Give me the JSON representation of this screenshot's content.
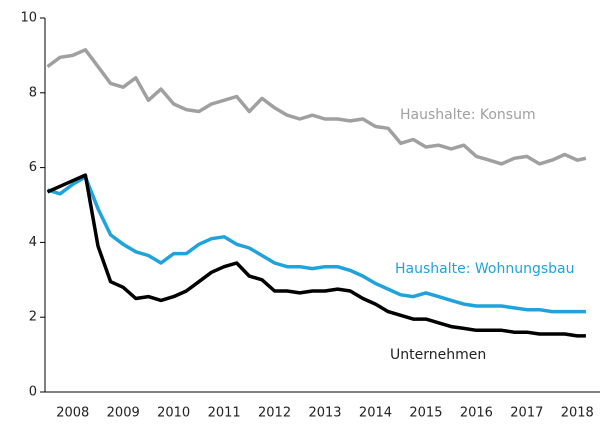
{
  "chart_data": {
    "type": "line",
    "x": [
      2008.0,
      2008.25,
      2008.5,
      2008.75,
      2009.0,
      2009.25,
      2009.5,
      2009.75,
      2010.0,
      2010.25,
      2010.5,
      2010.75,
      2011.0,
      2011.25,
      2011.5,
      2011.75,
      2012.0,
      2012.25,
      2012.5,
      2012.75,
      2013.0,
      2013.25,
      2013.5,
      2013.75,
      2014.0,
      2014.25,
      2014.5,
      2014.75,
      2015.0,
      2015.25,
      2015.5,
      2015.75,
      2016.0,
      2016.25,
      2016.5,
      2016.75,
      2017.0,
      2017.25,
      2017.5,
      2017.75,
      2018.0,
      2018.25,
      2018.5,
      2018.67
    ],
    "series": [
      {
        "name": "Haushalte: Konsum",
        "color": "#a0a0a0",
        "values": [
          8.7,
          8.95,
          9.0,
          9.15,
          8.7,
          8.25,
          8.15,
          8.4,
          7.8,
          8.1,
          7.7,
          7.55,
          7.5,
          7.7,
          7.8,
          7.9,
          7.5,
          7.85,
          7.6,
          7.4,
          7.3,
          7.4,
          7.3,
          7.3,
          7.25,
          7.3,
          7.1,
          7.05,
          6.65,
          6.75,
          6.55,
          6.6,
          6.5,
          6.6,
          6.3,
          6.2,
          6.1,
          6.25,
          6.3,
          6.1,
          6.2,
          6.35,
          6.2,
          6.25
        ]
      },
      {
        "name": "Haushalte: Wohnungsbau",
        "color": "#1fa3dc",
        "values": [
          5.4,
          5.3,
          5.55,
          5.75,
          4.9,
          4.2,
          3.95,
          3.75,
          3.65,
          3.45,
          3.7,
          3.7,
          3.95,
          4.1,
          4.15,
          3.95,
          3.85,
          3.65,
          3.45,
          3.35,
          3.35,
          3.3,
          3.35,
          3.35,
          3.25,
          3.1,
          2.9,
          2.75,
          2.6,
          2.55,
          2.65,
          2.55,
          2.45,
          2.35,
          2.3,
          2.3,
          2.3,
          2.25,
          2.2,
          2.2,
          2.15,
          2.15,
          2.15,
          2.15
        ]
      },
      {
        "name": "Unternehmen",
        "color": "#000000",
        "values": [
          5.35,
          5.5,
          5.65,
          5.8,
          3.9,
          2.95,
          2.8,
          2.5,
          2.55,
          2.45,
          2.55,
          2.7,
          2.95,
          3.2,
          3.35,
          3.45,
          3.1,
          3.0,
          2.7,
          2.7,
          2.65,
          2.7,
          2.7,
          2.75,
          2.7,
          2.5,
          2.35,
          2.15,
          2.05,
          1.95,
          1.95,
          1.85,
          1.75,
          1.7,
          1.65,
          1.65,
          1.65,
          1.6,
          1.6,
          1.55,
          1.55,
          1.55,
          1.5,
          1.5
        ]
      }
    ],
    "xlim": [
      2007.95,
      2018.95
    ],
    "xticks": [
      {
        "value": 2008.5,
        "label": "2008"
      },
      {
        "value": 2009.5,
        "label": "2009"
      },
      {
        "value": 2010.5,
        "label": "2010"
      },
      {
        "value": 2011.5,
        "label": "2011"
      },
      {
        "value": 2012.5,
        "label": "2012"
      },
      {
        "value": 2013.5,
        "label": "2013"
      },
      {
        "value": 2014.5,
        "label": "2014"
      },
      {
        "value": 2015.5,
        "label": "2015"
      },
      {
        "value": 2016.5,
        "label": "2016"
      },
      {
        "value": 2017.5,
        "label": "2017"
      },
      {
        "value": 2018.5,
        "label": "2018"
      }
    ],
    "ylim": [
      0,
      10
    ],
    "yticks": [
      0,
      2,
      4,
      6,
      8,
      10
    ],
    "grid": false
  }
}
